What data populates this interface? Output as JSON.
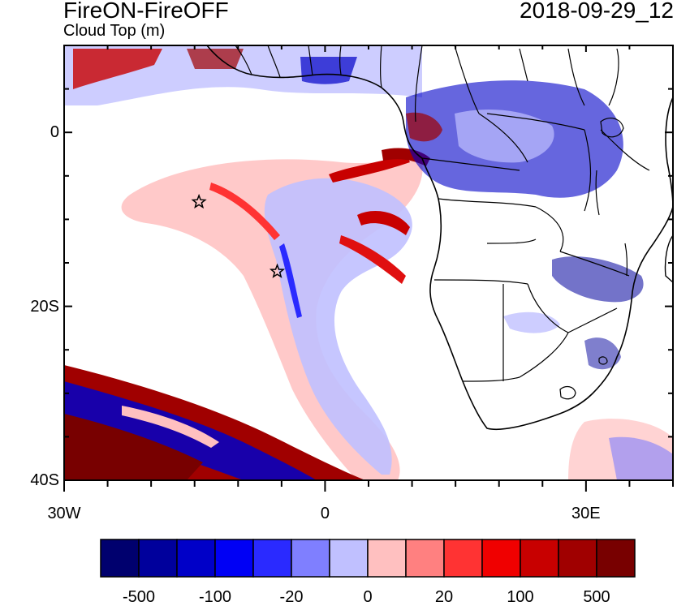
{
  "header": {
    "title": "FireON-FireOFF",
    "subtitle": "Cloud Top (m)",
    "datetime": "2018-09-29_12"
  },
  "map": {
    "lat_range": [
      -40,
      10
    ],
    "lon_range": [
      -30,
      40
    ],
    "y_tick_labels": [
      {
        "lat": 0,
        "label": "0"
      },
      {
        "lat": -20,
        "label": "20S"
      },
      {
        "lat": -40,
        "label": "40S"
      }
    ],
    "x_tick_labels": [
      {
        "lon": -30,
        "label": "30W"
      },
      {
        "lon": 0,
        "label": "0"
      },
      {
        "lon": 30,
        "label": "30E"
      }
    ],
    "markers": [
      {
        "name": "star",
        "lon": -14.5,
        "lat": -8
      },
      {
        "name": "star",
        "lon": -5.5,
        "lat": -16
      }
    ]
  },
  "colorbar": {
    "colors": [
      "#00006e",
      "#00009c",
      "#0000c8",
      "#0000f5",
      "#2a2aff",
      "#7f7fff",
      "#c0c0ff",
      "#ffc0c0",
      "#ff8080",
      "#ff3333",
      "#f00000",
      "#c80000",
      "#a00000",
      "#780000"
    ],
    "labels": [
      {
        "after_box": 1,
        "text": "-500"
      },
      {
        "after_box": 3,
        "text": "-100"
      },
      {
        "after_box": 5,
        "text": "-20"
      },
      {
        "after_box": 7,
        "text": "0"
      },
      {
        "after_box": 9,
        "text": "20"
      },
      {
        "after_box": 11,
        "text": "100"
      },
      {
        "after_box": 13,
        "text": "500"
      }
    ]
  }
}
